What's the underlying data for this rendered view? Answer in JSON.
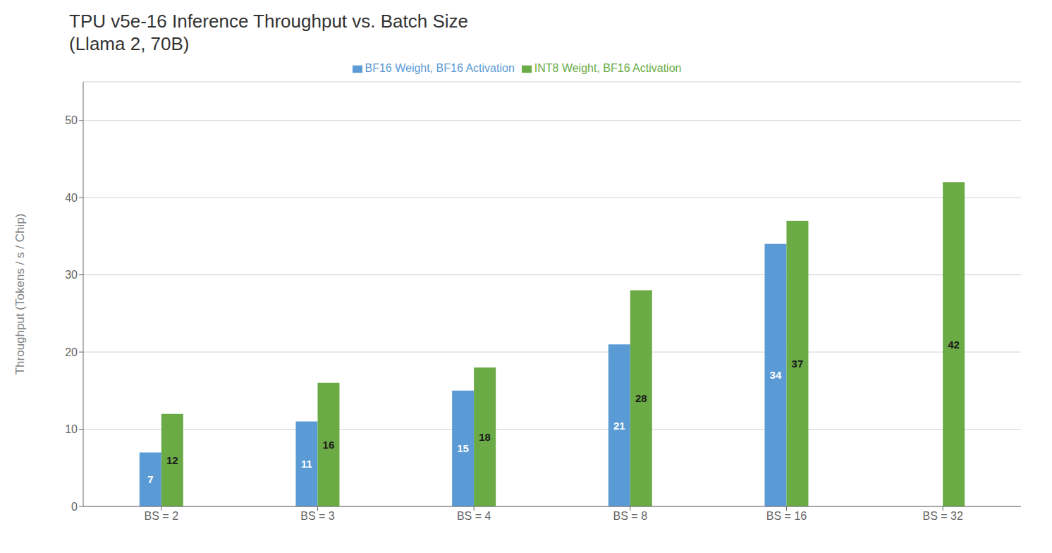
{
  "chart_data": {
    "type": "bar",
    "title": "TPU v5e-16 Inference Throughput vs. Batch Size",
    "subtitle": "(Llama 2, 70B)",
    "ylabel": "Throughput (Tokens / s / Chip)",
    "categories": [
      "BS = 2",
      "BS = 3",
      "BS = 4",
      "BS = 8",
      "BS = 16",
      "BS = 32"
    ],
    "series": [
      {
        "name": "BF16 Weight, BF16 Activation",
        "color": "#5B9BD5",
        "values": [
          7,
          11,
          15,
          21,
          34,
          null
        ]
      },
      {
        "name": "INT8 Weight, BF16 Activation",
        "color": "#6AAB45",
        "values": [
          12,
          16,
          18,
          28,
          37,
          42
        ]
      }
    ],
    "ylim": [
      0,
      55
    ],
    "yticks": [
      0,
      10,
      20,
      30,
      40,
      50
    ],
    "grid": true,
    "legend": "top",
    "data_labels": true
  }
}
